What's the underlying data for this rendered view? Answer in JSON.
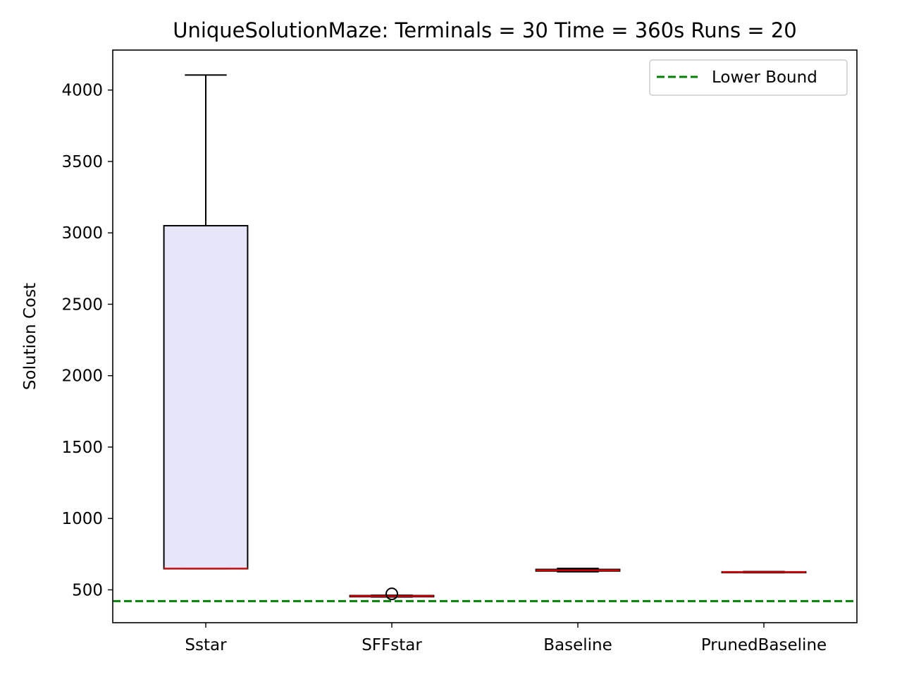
{
  "chart_data": {
    "type": "box",
    "title": "UniqueSolutionMaze:  Terminals = 30  Time = 360s  Runs = 20",
    "xlabel": "",
    "ylabel": "Solution Cost",
    "ylim": [
      270,
      4280
    ],
    "yticks": [
      500,
      1000,
      1500,
      2000,
      2500,
      3000,
      3500,
      4000
    ],
    "categories": [
      "Sstar",
      "SFFstar",
      "Baseline",
      "PrunedBaseline"
    ],
    "boxes": [
      {
        "name": "Sstar",
        "whisker_low": 648,
        "q1": 648,
        "median": 650,
        "q3": 3050,
        "whisker_high": 4105,
        "outliers": []
      },
      {
        "name": "SFFstar",
        "whisker_low": 450,
        "q1": 452,
        "median": 456,
        "q3": 460,
        "whisker_high": 462,
        "outliers": [
          472
        ]
      },
      {
        "name": "Baseline",
        "whisker_low": 627,
        "q1": 632,
        "median": 637,
        "q3": 643,
        "whisker_high": 650,
        "outliers": []
      },
      {
        "name": "PrunedBaseline",
        "whisker_low": 620,
        "q1": 622,
        "median": 624,
        "q3": 626,
        "whisker_high": 628,
        "outliers": []
      }
    ],
    "reference_line": {
      "label": "Lower Bound",
      "value": 421,
      "color": "#008000",
      "style": "dashed"
    },
    "legend": {
      "position": "top-right",
      "entries": [
        "Lower Bound"
      ]
    },
    "grid": false,
    "colors": {
      "box_fill": "#e6e6fa",
      "median": "#ff0000",
      "lines": "#000000"
    }
  }
}
